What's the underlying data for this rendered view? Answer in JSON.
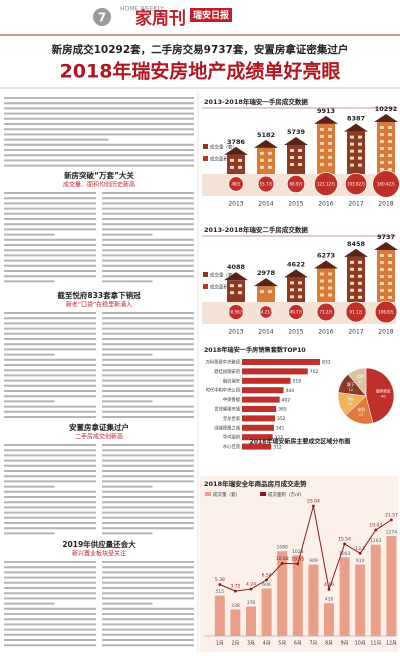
{
  "header": {
    "brand": "HOME WEEKLY",
    "page": "7",
    "title": "家周刊",
    "paper": "瑞安日报"
  },
  "headline": {
    "kicker": "新房成交10292套，二手房交易9737套，安置房拿证密集过户",
    "title": "2018年瑞安房地产成绩单好亮眼"
  },
  "articles": [
    {
      "heading": "新房突破“万套”大关",
      "subheading": "成交量、面积均创历史新高"
    },
    {
      "heading": "截至悦府833套拿下销冠",
      "subheading": "新老“口袋”在稳里新涌入"
    },
    {
      "heading": "安置房拿证集过户",
      "subheading": "二手房成交创新高"
    },
    {
      "heading": "2019年供应量还会大",
      "subheading": "新兴置业板块受关注"
    }
  ],
  "chart_data": [
    {
      "type": "houses",
      "title": "2013-2018年瑞安一手房成交数据",
      "categories": [
        "2013",
        "2014",
        "2015",
        "2016",
        "2017",
        "2018"
      ],
      "series": [
        {
          "name": "成交量（套）",
          "color": "#8b3a2a",
          "values": [
            3786,
            5182,
            5739,
            9913,
            8387,
            10292
          ]
        },
        {
          "name": "成交面积（万㎡）",
          "color": "#c0302a",
          "values": [
            48,
            55.7,
            68.9,
            121.12,
            103.92,
            160.42
          ],
          "value_labels": [
            "48万",
            "55.7万",
            "68.9万",
            "121.12万",
            "103.92万",
            "160.42万"
          ]
        }
      ]
    },
    {
      "type": "houses",
      "title": "2013-2018年瑞安二手房成交数据",
      "categories": [
        "2013",
        "2014",
        "2015",
        "2016",
        "2017",
        "2018"
      ],
      "series": [
        {
          "name": "成交量（套）",
          "color": "#8b3a2a",
          "values": [
            4088,
            2978,
            4622,
            6273,
            8458,
            9737
          ]
        },
        {
          "name": "成交面积（万㎡）",
          "color": "#c0302a",
          "values": [
            50.56,
            34.21,
            49.7,
            71.2,
            91.1,
            106.8
          ],
          "value_labels": [
            "50.56万",
            "34.21万",
            "49.7万",
            "71.2万",
            "91.1万",
            "106.8万"
          ]
        }
      ]
    },
    {
      "type": "hbar",
      "title": "2018年瑞安一手房销售套数TOP10",
      "categories": [
        "万科翡翠中央雅居",
        "碧桂园瑞安府",
        "融信澜天",
        "时代中和中央公园",
        "中梁香缇",
        "世茂璀璨天城",
        "宝龙世家",
        "绿城理想之城",
        "华鸿瑞府",
        "水心佳苑"
      ],
      "values": [
        833,
        702,
        518,
        444,
        402,
        365,
        352,
        341,
        327,
        312
      ],
      "color": "#c0302a"
    },
    {
      "type": "pie",
      "title": "2018年瑞安新房主要成交区域分布图",
      "categories": [
        "瑞祥新区",
        "安阳",
        "飞云",
        "塘下",
        "其他"
      ],
      "values": [
        46,
        17,
        14,
        12,
        11
      ],
      "colors": [
        "#c0302a",
        "#e07a3a",
        "#f2b25a",
        "#8b3a2a",
        "#d9c2a0"
      ]
    },
    {
      "type": "combo",
      "title": "2018年瑞安全年商品房月成交走势",
      "categories": [
        "1月",
        "2月",
        "3月",
        "4月",
        "5月",
        "6月",
        "7月",
        "8月",
        "9月",
        "10月",
        "11月",
        "12月"
      ],
      "series": [
        {
          "name": "成交量（套）",
          "color": "#e8a08a",
          "values": [
            515,
            338,
            376,
            606,
            1080,
            1028,
            909,
            418,
            1003,
            910,
            1163,
            1274
          ]
        },
        {
          "name": "成交面积（万㎡）",
          "color": "#8b1a1a",
          "values": [
            5.38,
            3.72,
            4.24,
            6.54,
            10.68,
            10.55,
            25.04,
            4.16,
            15.54,
            13.2,
            19.03,
            21.57
          ]
        }
      ]
    }
  ]
}
